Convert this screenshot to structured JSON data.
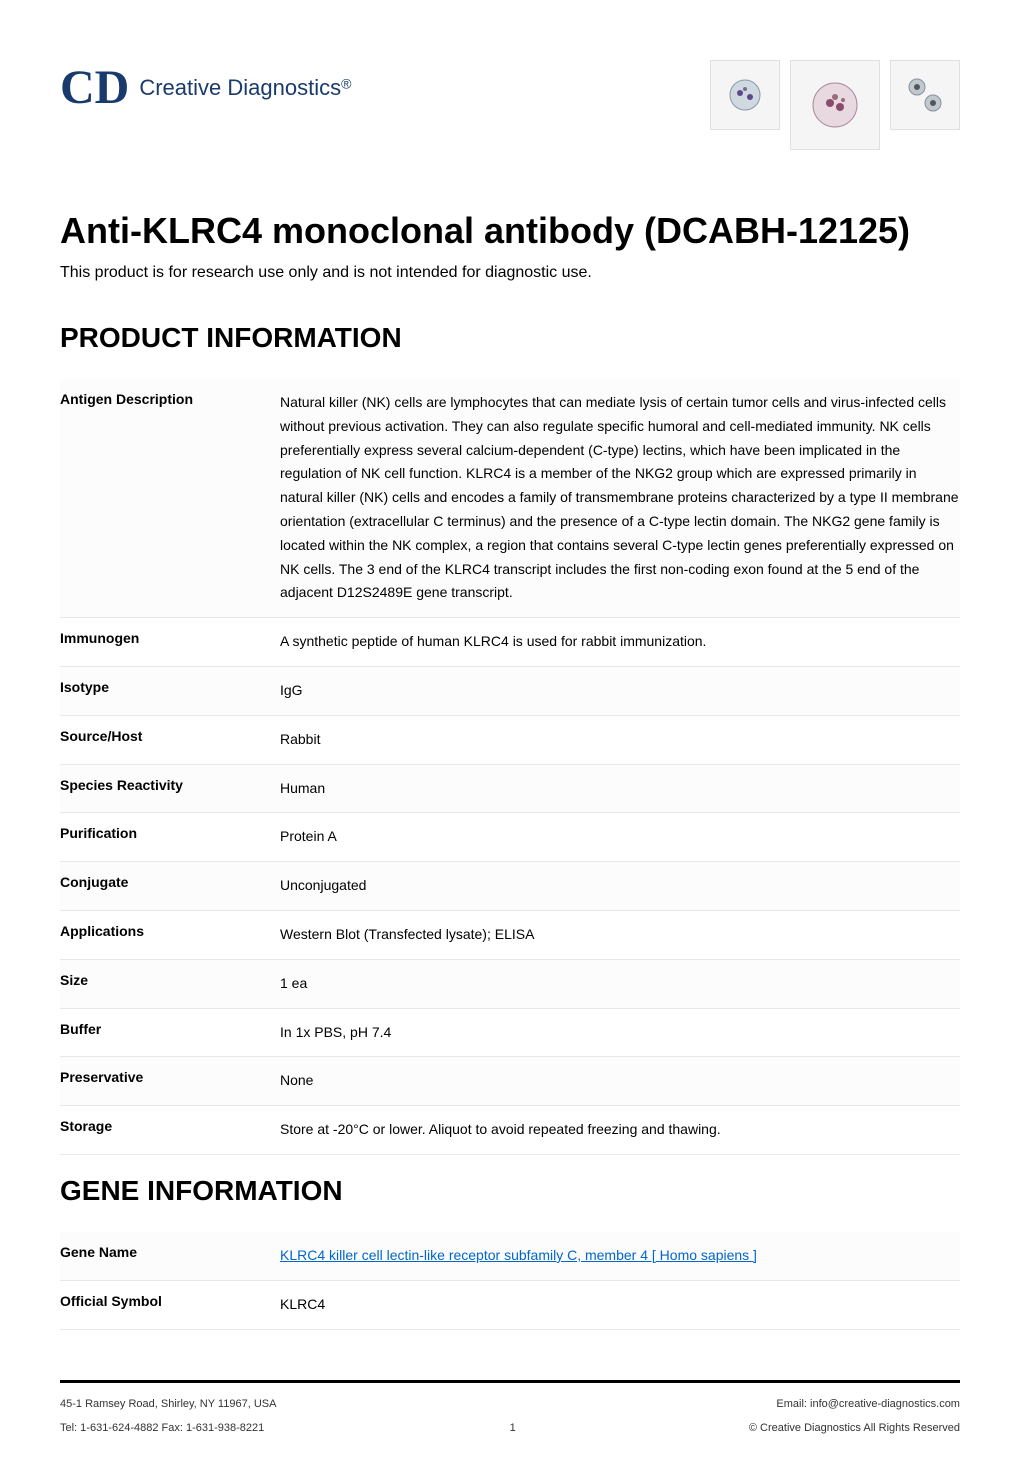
{
  "logo": {
    "abbreviation": "CD",
    "company_name": "Creative Diagnostics",
    "registered": "®"
  },
  "main_title": "Anti-KLRC4 monoclonal antibody (DCABH-12125)",
  "subtitle": "This product is for research use only and is not intended for diagnostic use.",
  "sections": {
    "product_info": {
      "title": "PRODUCT INFORMATION",
      "rows": [
        {
          "label": "Antigen Description",
          "value": "Natural killer (NK) cells are lymphocytes that can mediate lysis of certain tumor cells and virus-infected cells without previous activation. They can also regulate specific humoral and cell-mediated immunity. NK cells preferentially express several calcium-dependent (C-type) lectins, which have been implicated in the regulation of NK cell function. KLRC4 is a member of the NKG2 group which are expressed primarily in natural killer (NK) cells and encodes a family of transmembrane proteins characterized by a type II membrane orientation (extracellular C terminus) and the presence of a C-type lectin domain. The NKG2 gene family is located within the NK complex, a region that contains several C-type lectin genes preferentially expressed on NK cells. The 3 end of the KLRC4 transcript includes the first non-coding exon found at the 5 end of the adjacent D12S2489E gene transcript."
        },
        {
          "label": "Immunogen",
          "value": "A synthetic peptide of human KLRC4 is used for rabbit immunization."
        },
        {
          "label": "Isotype",
          "value": "IgG"
        },
        {
          "label": "Source/Host",
          "value": "Rabbit"
        },
        {
          "label": "Species Reactivity",
          "value": "Human"
        },
        {
          "label": "Purification",
          "value": "Protein A"
        },
        {
          "label": "Conjugate",
          "value": "Unconjugated"
        },
        {
          "label": "Applications",
          "value": "Western Blot (Transfected lysate); ELISA"
        },
        {
          "label": "Size",
          "value": "1 ea"
        },
        {
          "label": "Buffer",
          "value": "In 1x PBS, pH 7.4"
        },
        {
          "label": "Preservative",
          "value": "None"
        },
        {
          "label": "Storage",
          "value": "Store at -20°C or lower. Aliquot to avoid repeated freezing and thawing."
        }
      ]
    },
    "gene_info": {
      "title": "GENE INFORMATION",
      "rows": [
        {
          "label": "Gene Name",
          "value": "KLRC4 killer cell lectin-like receptor subfamily C, member 4 [ Homo sapiens ]",
          "is_link": true
        },
        {
          "label": "Official Symbol",
          "value": "KLRC4"
        }
      ]
    }
  },
  "footer": {
    "address": "45-1 Ramsey Road, Shirley, NY 11967, USA",
    "phone": "Tel: 1-631-624-4882 Fax: 1-631-938-8221",
    "page_number": "1",
    "email": "Email: info@creative-diagnostics.com",
    "copyright": "© Creative Diagnostics All Rights Reserved"
  },
  "colors": {
    "logo_color": "#1a3a6e",
    "text_color": "#000000",
    "link_color": "#0066cc",
    "row_border": "#e8e8e8",
    "row_alt_bg": "#fcfcfc",
    "footer_border": "#000000"
  }
}
